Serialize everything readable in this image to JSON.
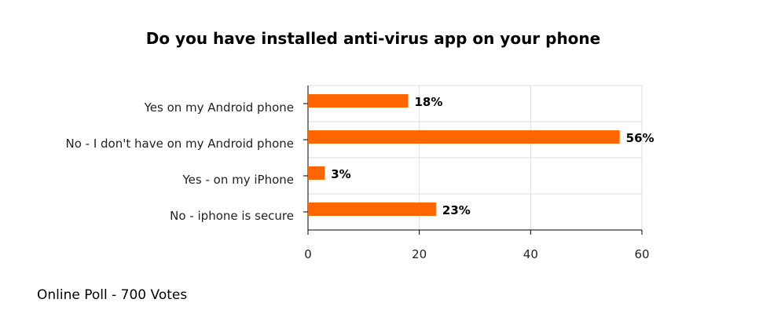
{
  "chart_data": {
    "type": "bar",
    "orientation": "horizontal",
    "title": "Do you have installed anti-virus app on your phone",
    "categories": [
      "Yes on my Android phone",
      "No - I don't have on my Android phone",
      "Yes - on my iPhone",
      "No - iphone is secure"
    ],
    "values": [
      18,
      56,
      3,
      23
    ],
    "data_labels": [
      "18%",
      "56%",
      "3%",
      "23%"
    ],
    "xlim": [
      0,
      60
    ],
    "xticks": [
      0,
      20,
      40,
      60
    ],
    "xlabel": "",
    "ylabel": "",
    "grid": true,
    "bar_color": "#ff6600"
  },
  "footnote": "Online Poll - 700 Votes"
}
